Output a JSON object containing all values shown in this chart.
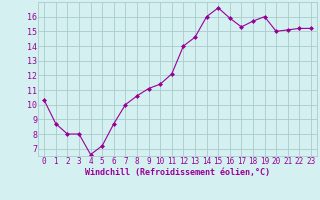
{
  "x": [
    0,
    1,
    2,
    3,
    4,
    5,
    6,
    7,
    8,
    9,
    10,
    11,
    12,
    13,
    14,
    15,
    16,
    17,
    18,
    19,
    20,
    21,
    22,
    23
  ],
  "y": [
    10.3,
    8.7,
    8.0,
    8.0,
    6.6,
    7.2,
    8.7,
    10.0,
    10.6,
    11.1,
    11.4,
    12.1,
    14.0,
    14.6,
    16.0,
    16.6,
    15.9,
    15.3,
    15.7,
    16.0,
    15.0,
    15.1,
    15.2,
    15.2
  ],
  "line_color": "#990099",
  "marker": "D",
  "marker_size": 2,
  "bg_color": "#d4f0f0",
  "grid_color": "#aacccc",
  "xlabel": "Windchill (Refroidissement éolien,°C)",
  "xlabel_color": "#990099",
  "tick_color": "#990099",
  "xlim": [
    -0.5,
    23.5
  ],
  "ylim": [
    6.5,
    17.0
  ],
  "yticks": [
    7,
    8,
    9,
    10,
    11,
    12,
    13,
    14,
    15,
    16
  ],
  "xticks": [
    0,
    1,
    2,
    3,
    4,
    5,
    6,
    7,
    8,
    9,
    10,
    11,
    12,
    13,
    14,
    15,
    16,
    17,
    18,
    19,
    20,
    21,
    22,
    23
  ]
}
